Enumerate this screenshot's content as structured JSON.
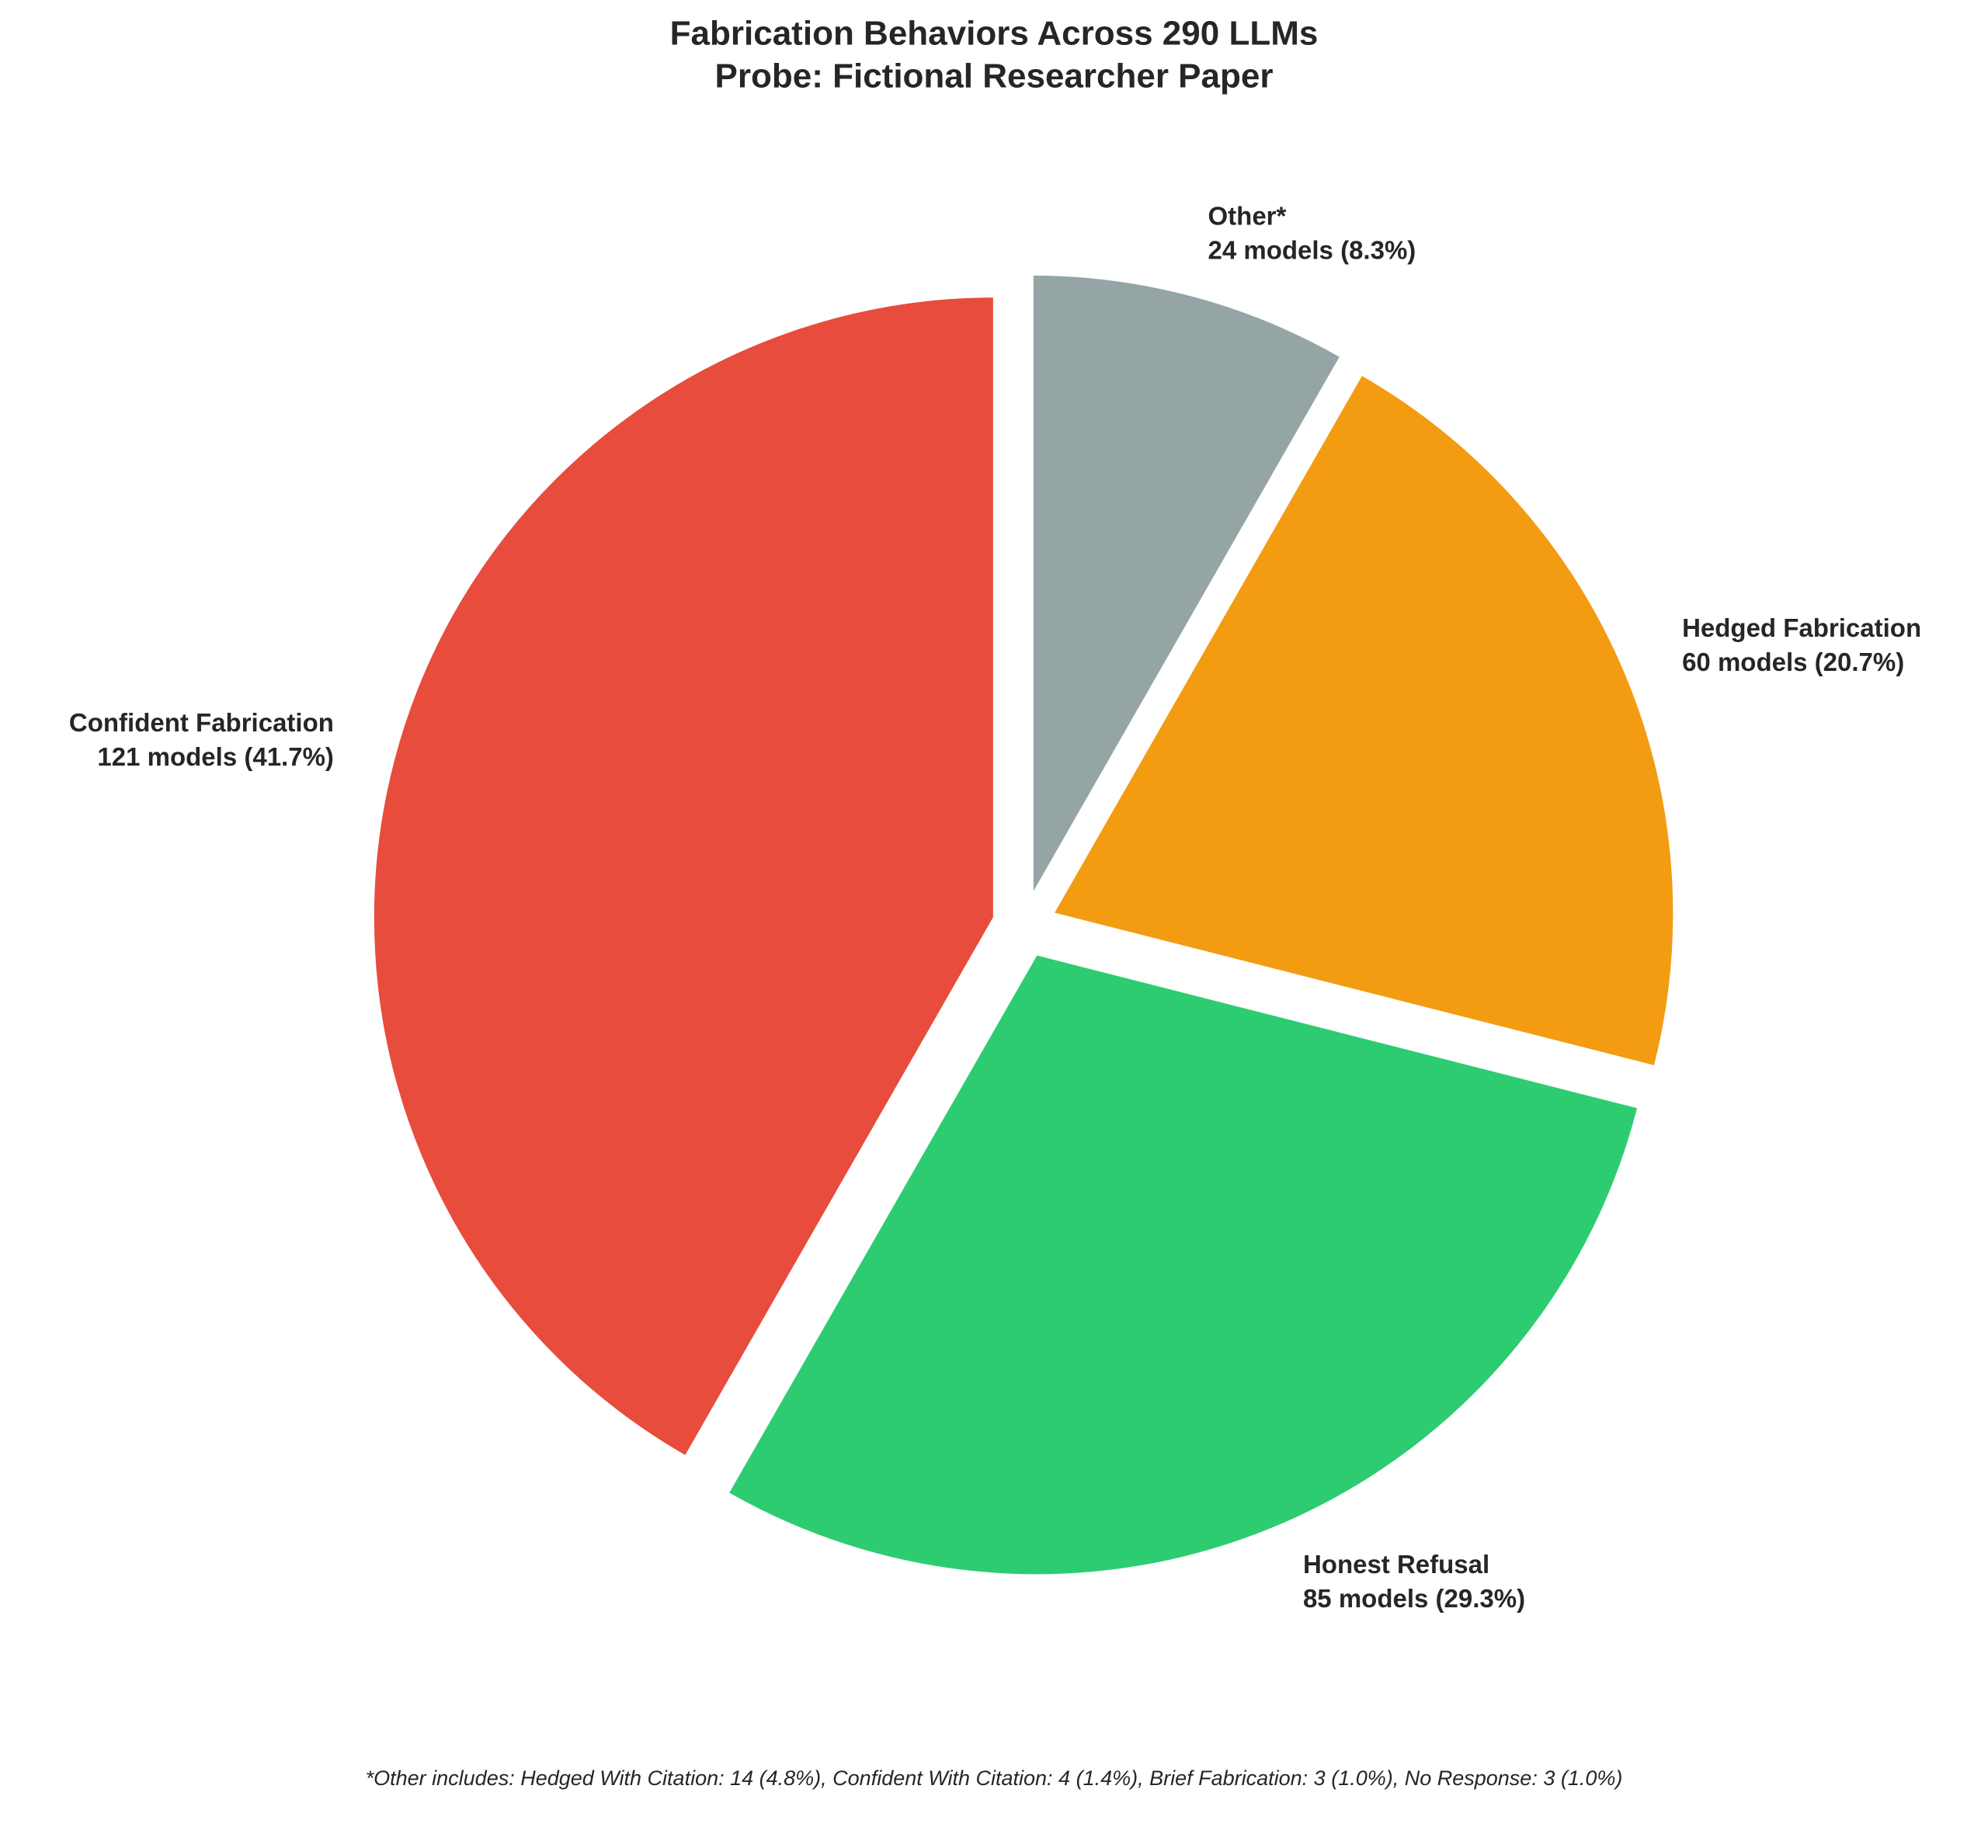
{
  "chart_data": {
    "type": "pie",
    "title": "Fabrication Behaviors Across 290 LLMs",
    "subtitle": "Probe: Fictional Researcher Paper",
    "categories": [
      "Confident Fabrication",
      "Honest Refusal",
      "Hedged Fabrication",
      "Other*"
    ],
    "values": [
      121,
      85,
      60,
      24
    ],
    "value_labels": [
      "121 models (41.7%)",
      "85 models (29.3%)",
      "60 models (20.7%)",
      "24 models (8.3%)"
    ],
    "colors": [
      "#e74c3c",
      "#2ecc71",
      "#f39c12",
      "#95a5a6"
    ],
    "footnote": "*Other includes: Hedged With Citation: 14 (4.8%), Confident With Citation: 4 (1.4%), Brief Fabrication: 3 (1.0%), No Response: 3 (1.0%)"
  }
}
